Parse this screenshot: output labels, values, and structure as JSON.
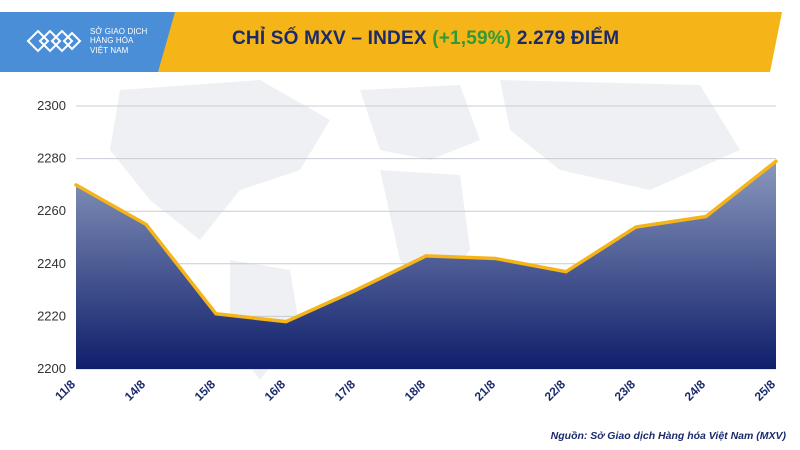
{
  "header": {
    "logo_lines": [
      "SỞ GIAO DỊCH",
      "HÀNG HÓA",
      "VIỆT NAM"
    ],
    "title_prefix": "CHỈ SỐ MXV – INDEX",
    "title_change": "(+1,59%)",
    "title_suffix": "2.279 ĐIỂM"
  },
  "source": "Nguồn: Sở Giao dịch Hàng hóa Việt Nam (MXV)",
  "colors": {
    "header_band": "#f5b417",
    "title_text": "#1a2a6c",
    "change_text": "#2e9a38",
    "line": "#f5b417",
    "area_top": "#8a98bd",
    "area_bottom": "#0f1f6b"
  },
  "chart_data": {
    "type": "area",
    "categories": [
      "11/8",
      "14/8",
      "15/8",
      "16/8",
      "17/8",
      "18/8",
      "21/8",
      "22/8",
      "23/8",
      "24/8",
      "25/8"
    ],
    "series": [
      {
        "values": [
          2270,
          2255,
          2221,
          2218,
          2230,
          2243,
          2242,
          2237,
          2254,
          2258,
          2279
        ]
      }
    ],
    "yticks": [
      2200,
      2220,
      2240,
      2260,
      2280,
      2300
    ],
    "ylim": [
      2200,
      2300
    ],
    "grid": true,
    "title": "CHỈ SỐ MXV – INDEX (+1,59%) 2.279 ĐIỂM"
  }
}
